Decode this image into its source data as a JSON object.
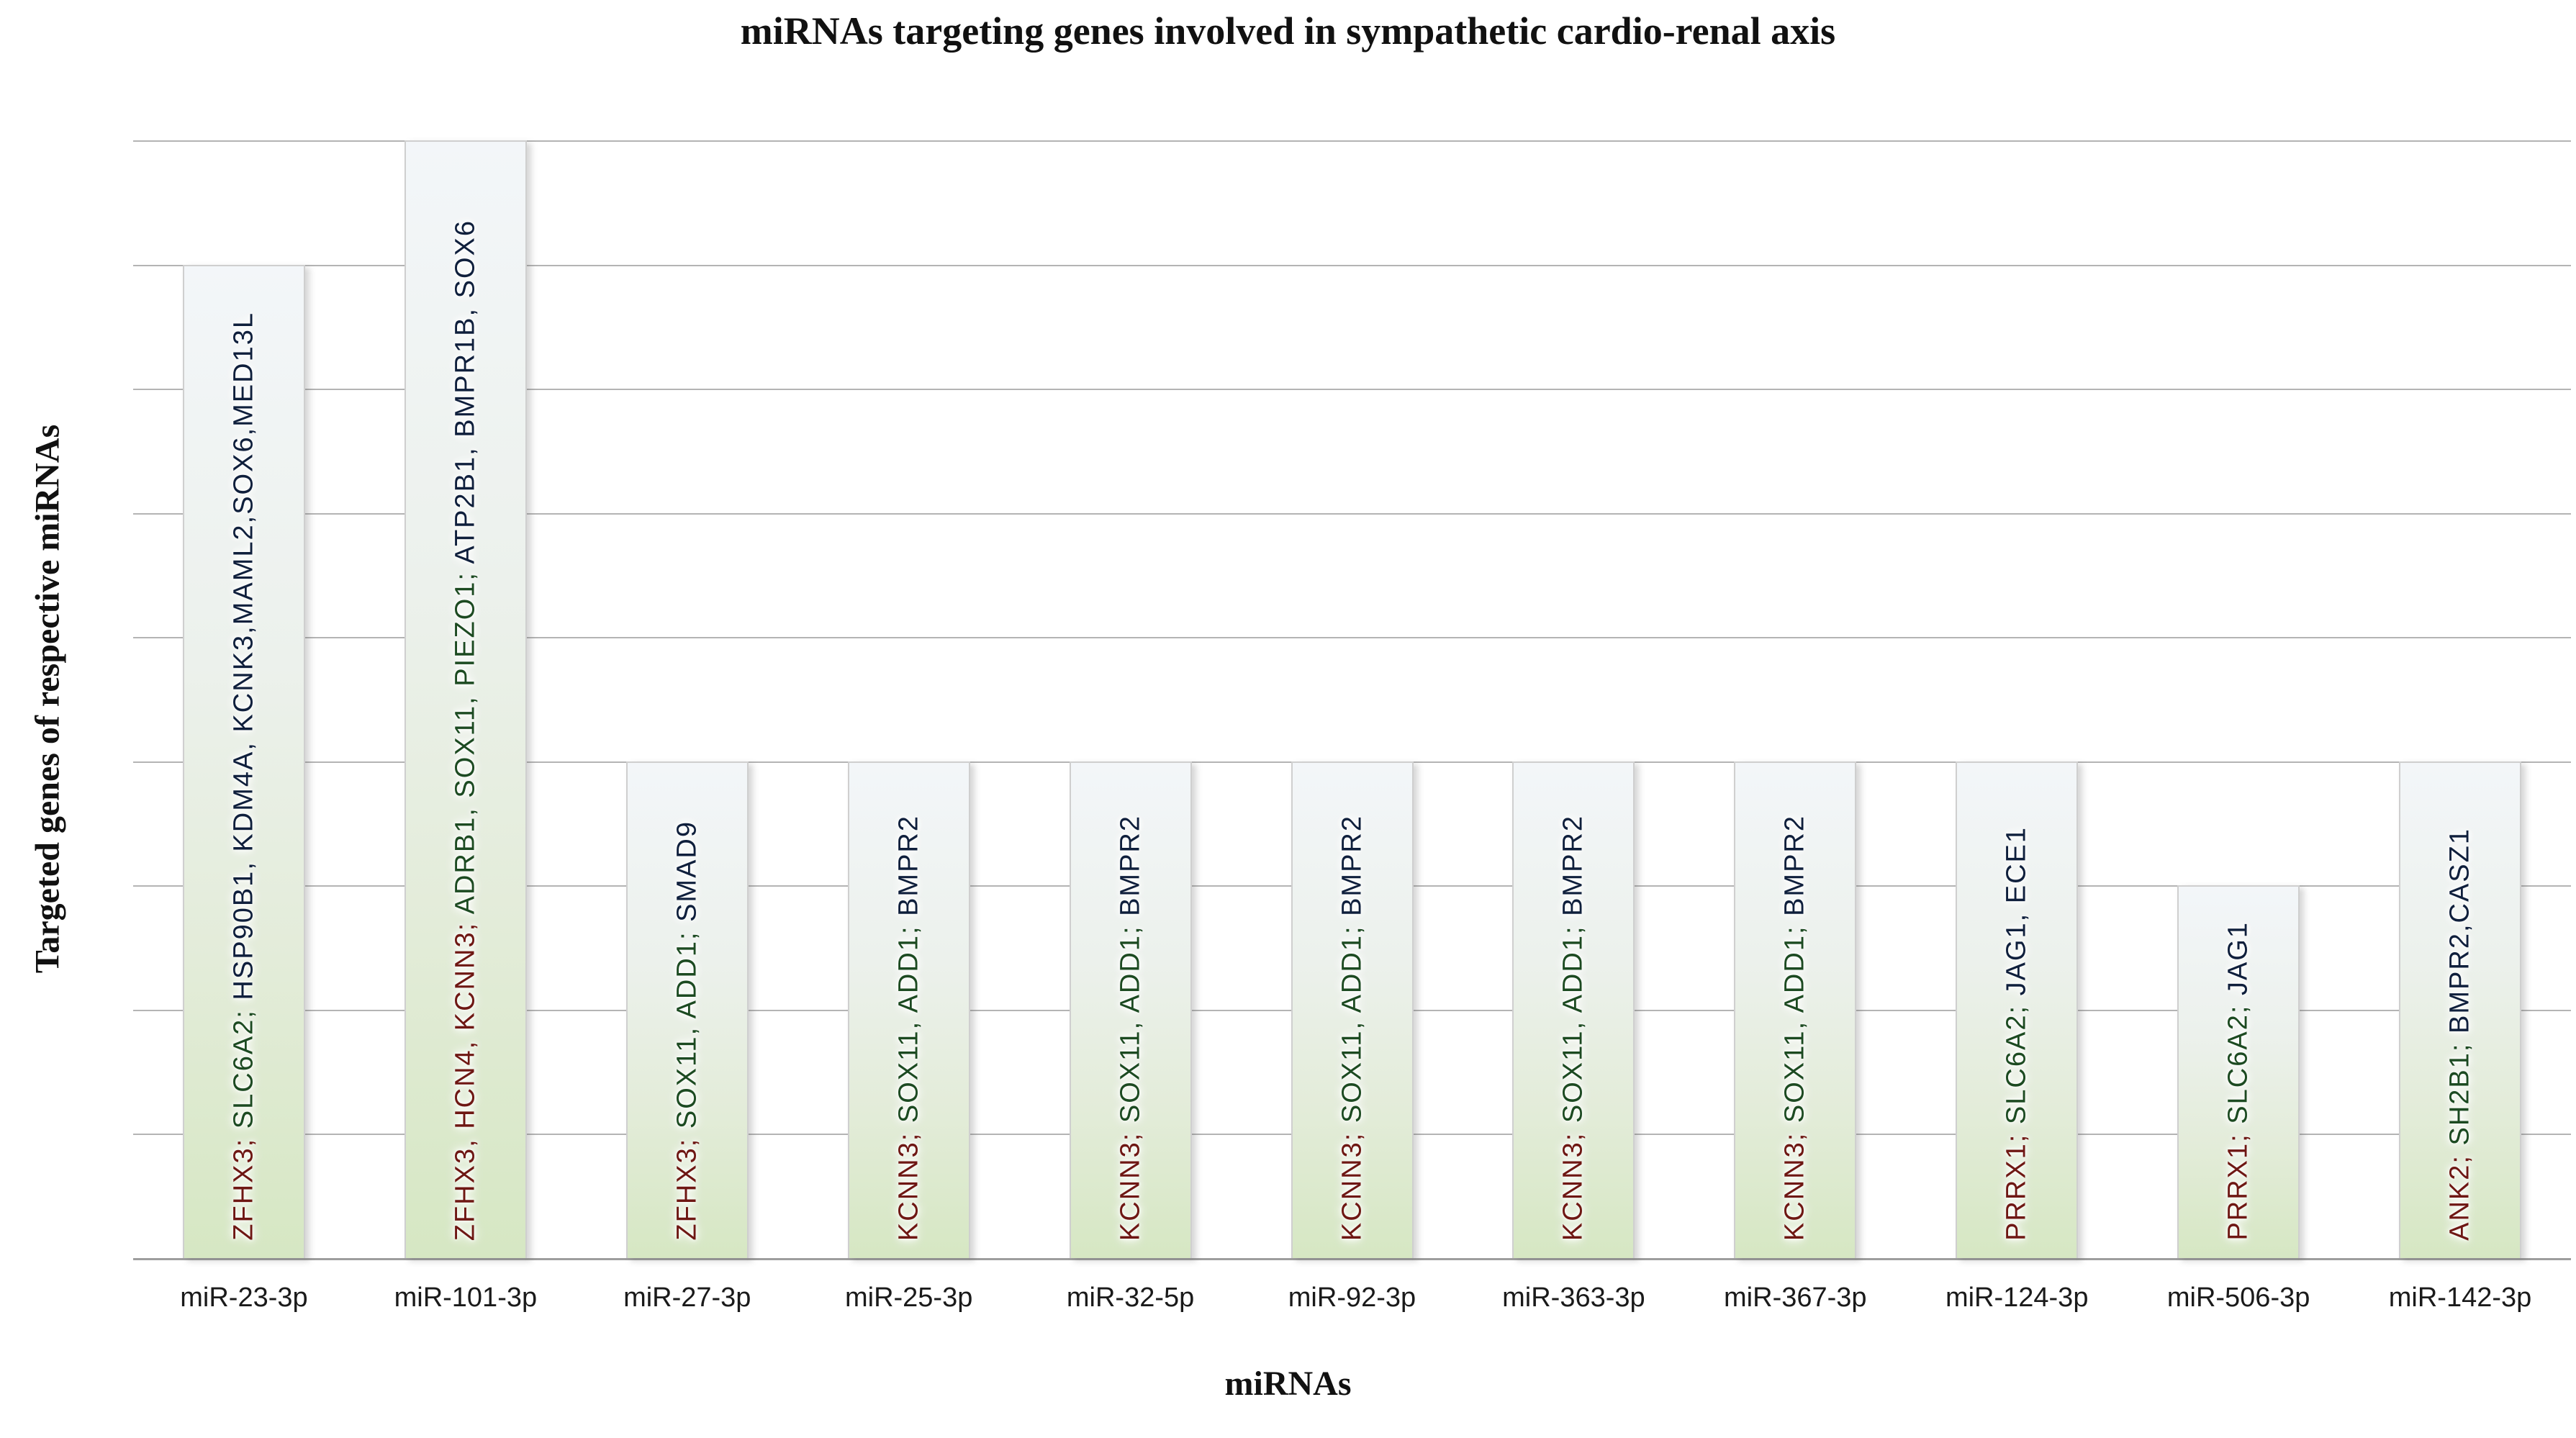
{
  "chart_data": {
    "type": "bar",
    "title": "miRNAs targeting genes involved in sympathetic cardio-renal axis",
    "xlabel": "miRNAs",
    "ylabel": "Targeted genes of respective miRNAs",
    "ylim": [
      0,
      9
    ],
    "grid": true,
    "grid_interval": 1,
    "y_tick_labels_visible": false,
    "legend": "none",
    "categories": [
      "miR-23-3p",
      "miR-101-3p",
      "miR-27-3p",
      "miR-25-3p",
      "miR-32-5p",
      "miR-92-3p",
      "miR-363-3p",
      "miR-367-3p",
      "miR-124-3p",
      "miR-506-3p",
      "miR-142-3p"
    ],
    "values": [
      8,
      9,
      4,
      4,
      4,
      4,
      4,
      4,
      4,
      3,
      4
    ],
    "bars": [
      {
        "mirna": "miR-23-3p",
        "value": 8,
        "segments": [
          {
            "text": "ZFHX3;",
            "color_key": "red"
          },
          {
            "text": "  SLC6A2;",
            "color_key": "green"
          },
          {
            "text": "  HSP90B1, KDM4A,  KCNK3,MAML2,SOX6,MED13L",
            "color_key": "navy"
          }
        ]
      },
      {
        "mirna": "miR-101-3p",
        "value": 9,
        "segments": [
          {
            "text": "ZFHX3, HCN4, KCNN3;",
            "color_key": "red"
          },
          {
            "text": "  ADRB1, SOX11, PIEZO1;",
            "color_key": "green"
          },
          {
            "text": "  ATP2B1, BMPR1B, SOX6",
            "color_key": "navy"
          }
        ]
      },
      {
        "mirna": "miR-27-3p",
        "value": 4,
        "segments": [
          {
            "text": "ZFHX3;",
            "color_key": "red"
          },
          {
            "text": "  SOX11, ADD1;",
            "color_key": "green"
          },
          {
            "text": "  SMAD9",
            "color_key": "navy"
          }
        ]
      },
      {
        "mirna": "miR-25-3p",
        "value": 4,
        "segments": [
          {
            "text": "KCNN3;",
            "color_key": "red"
          },
          {
            "text": "  SOX11, ADD1;",
            "color_key": "green"
          },
          {
            "text": "  BMPR2",
            "color_key": "navy"
          }
        ]
      },
      {
        "mirna": "miR-32-5p",
        "value": 4,
        "segments": [
          {
            "text": "KCNN3;",
            "color_key": "red"
          },
          {
            "text": "  SOX11, ADD1;",
            "color_key": "green"
          },
          {
            "text": "  BMPR2",
            "color_key": "navy"
          }
        ]
      },
      {
        "mirna": "miR-92-3p",
        "value": 4,
        "segments": [
          {
            "text": "KCNN3;",
            "color_key": "red"
          },
          {
            "text": "  SOX11, ADD1;",
            "color_key": "green"
          },
          {
            "text": "  BMPR2",
            "color_key": "navy"
          }
        ]
      },
      {
        "mirna": "miR-363-3p",
        "value": 4,
        "segments": [
          {
            "text": "KCNN3;",
            "color_key": "red"
          },
          {
            "text": "  SOX11, ADD1;",
            "color_key": "green"
          },
          {
            "text": "  BMPR2",
            "color_key": "navy"
          }
        ]
      },
      {
        "mirna": "miR-367-3p",
        "value": 4,
        "segments": [
          {
            "text": "KCNN3;",
            "color_key": "red"
          },
          {
            "text": "  SOX11, ADD1;",
            "color_key": "green"
          },
          {
            "text": "  BMPR2",
            "color_key": "navy"
          }
        ]
      },
      {
        "mirna": "miR-124-3p",
        "value": 4,
        "segments": [
          {
            "text": "PRRX1;",
            "color_key": "red"
          },
          {
            "text": "  SLC6A2;",
            "color_key": "green"
          },
          {
            "text": "  JAG1, ECE1",
            "color_key": "navy"
          }
        ]
      },
      {
        "mirna": "miR-506-3p",
        "value": 3,
        "segments": [
          {
            "text": "PRRX1;",
            "color_key": "red"
          },
          {
            "text": "  SLC6A2;",
            "color_key": "green"
          },
          {
            "text": "  JAG1",
            "color_key": "navy"
          }
        ]
      },
      {
        "mirna": "miR-142-3p",
        "value": 4,
        "segments": [
          {
            "text": "ANK2;",
            "color_key": "red"
          },
          {
            "text": "  SH2B1;",
            "color_key": "green"
          },
          {
            "text": "  BMPR2,CASZ1",
            "color_key": "navy"
          }
        ]
      }
    ]
  },
  "colors": {
    "segment_red": "#6e1713",
    "segment_green": "#1c4a21",
    "segment_navy": "#0f1f3c",
    "bar_gradient_top": "#f3f6f9",
    "bar_gradient_bottom": "#d6e7c3",
    "bar_border": "#cfcfcf",
    "gridline": "#b4b4b4",
    "axis_line": "#9e9e9e",
    "text": "#111111"
  }
}
